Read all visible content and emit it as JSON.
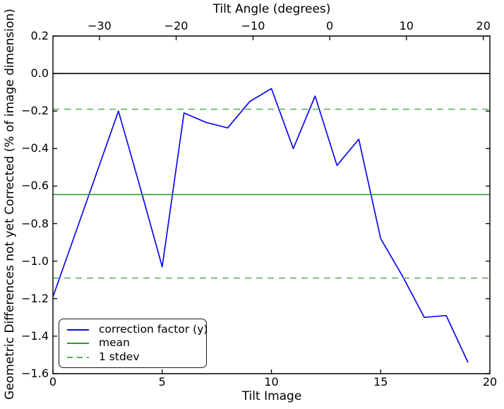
{
  "chart_data": {
    "type": "line",
    "title": "",
    "xlabel": "Tilt Image",
    "ylabel": "Geometric Differences not yet Corrected (% of image dimension)",
    "top_axis_label": "Tilt Angle (degrees)",
    "xlim": [
      0,
      20
    ],
    "ylim": [
      -1.6,
      0.2
    ],
    "grid": false,
    "x_ticks": {
      "values": [
        0,
        5,
        10,
        15,
        20
      ],
      "labels": [
        "0",
        "5",
        "10",
        "15",
        "20"
      ]
    },
    "y_ticks": {
      "values": [
        0.2,
        0.0,
        -0.2,
        -0.4,
        -0.6,
        -0.8,
        -1.0,
        -1.2,
        -1.4,
        -1.6
      ],
      "labels": [
        "0.2",
        "0.0",
        "−0.2",
        "−0.4",
        "−0.6",
        "−0.8",
        "−1.0",
        "−1.2",
        "−1.4",
        "−1.6"
      ]
    },
    "top_ticks": {
      "angle_values": [
        -30,
        -20,
        -10,
        0,
        10,
        20
      ],
      "labels": [
        "−30",
        "−20",
        "−10",
        "0",
        "10",
        "20"
      ],
      "positions_in_tilt_image_units": [
        2.13,
        5.64,
        9.16,
        12.67,
        16.18,
        19.7
      ]
    },
    "series": [
      {
        "name": "correction factor (y)",
        "kind": "line",
        "style": "solid",
        "color": "#0b0bef",
        "x": [
          0,
          1,
          2,
          3,
          4,
          5,
          6,
          7,
          8,
          9,
          10,
          11,
          12,
          13,
          14,
          15,
          16,
          17,
          18,
          19
        ],
        "y": [
          -1.19,
          -0.86,
          -0.53,
          -0.2,
          -0.61,
          -1.03,
          -0.21,
          -0.26,
          -0.29,
          -0.15,
          -0.08,
          -0.4,
          -0.12,
          -0.49,
          -0.35,
          -0.88,
          -1.08,
          -1.3,
          -1.29,
          -1.54
        ]
      },
      {
        "name": "mean",
        "kind": "hline",
        "style": "solid",
        "color": "#2e9b2e",
        "y_values": [
          -0.645
        ]
      },
      {
        "name": "1 stdev",
        "kind": "hline",
        "style": "dashed",
        "color": "#57ad57",
        "y_values": [
          -0.19,
          -1.09
        ]
      },
      {
        "name": "zero reference",
        "kind": "hline",
        "style": "solid",
        "color": "#000000",
        "y_values": [
          0.0
        ]
      }
    ],
    "legend": {
      "position": "lower left",
      "entries": [
        {
          "label": "correction factor (y)",
          "sample": "solid-blue"
        },
        {
          "label": "mean",
          "sample": "solid-green"
        },
        {
          "label": "1 stdev",
          "sample": "dashed-green"
        }
      ]
    }
  }
}
